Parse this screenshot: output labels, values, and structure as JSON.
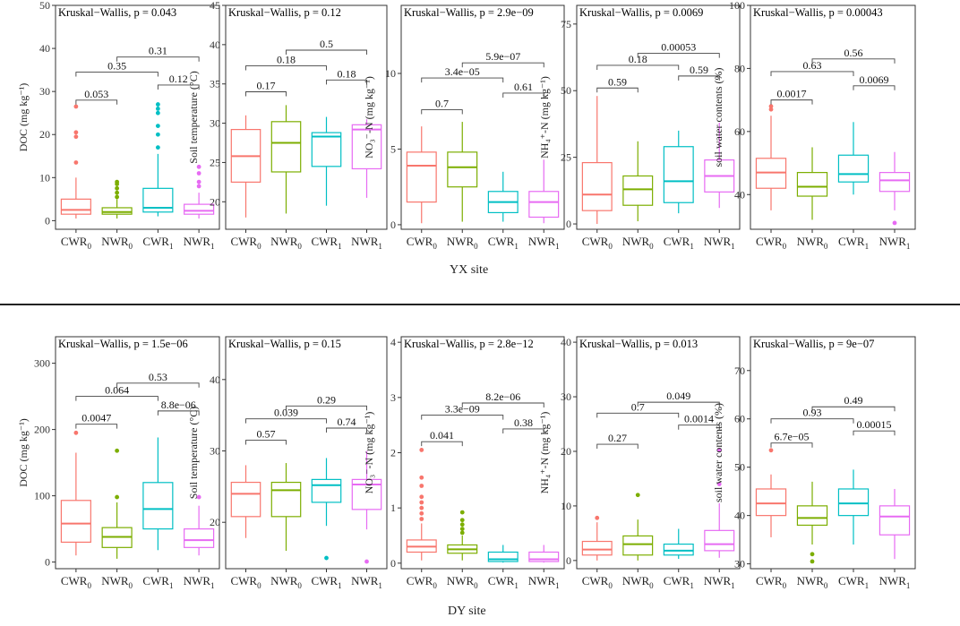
{
  "colors": {
    "CWR0": "#F8766D",
    "NWR0": "#7CAE00",
    "CWR1": "#00BFC4",
    "NWR1": "#E76BF3"
  },
  "sites": [
    {
      "label": "YX  site"
    },
    {
      "label": "DY  site"
    }
  ],
  "chart_data": [
    {
      "type": "box",
      "site": "YX",
      "ylabel": "DOC (mg kg⁻¹)",
      "kw": "Kruskal−Wallis, p = 0.043",
      "ylim": [
        -2,
        50
      ],
      "ticks": [
        0,
        10,
        20,
        30,
        40,
        50
      ],
      "groups": [
        {
          "name": "CWR",
          "sub": "0",
          "key": "CWR0",
          "q1": 1.5,
          "median": 2.5,
          "q3": 5,
          "whislo": 0.5,
          "whishi": 10,
          "outliers": [
            13.5,
            19.5,
            20.5,
            26.5
          ]
        },
        {
          "name": "NWR",
          "sub": "0",
          "key": "NWR0",
          "q1": 1.5,
          "median": 2,
          "q3": 3,
          "whislo": 0.5,
          "whishi": 5,
          "outliers": [
            5.5,
            6.5,
            7.5,
            8.5,
            9
          ]
        },
        {
          "name": "CWR",
          "sub": "1",
          "key": "CWR1",
          "q1": 2,
          "median": 3,
          "q3": 7.5,
          "whislo": 1,
          "whishi": 15.5,
          "outliers": [
            17,
            20,
            22,
            25,
            26,
            27
          ]
        },
        {
          "name": "NWR",
          "sub": "1",
          "key": "NWR1",
          "q1": 1.5,
          "median": 2.3,
          "q3": 3.8,
          "whislo": 0.5,
          "whishi": 6.5,
          "outliers": [
            8,
            9,
            11,
            12.5
          ]
        }
      ],
      "comparisons": [
        {
          "a": 1,
          "b": 2,
          "y": 28,
          "label": "0.053"
        },
        {
          "a": 1,
          "b": 3,
          "y": 34.5,
          "label": "0.35"
        },
        {
          "a": 2,
          "b": 4,
          "y": 38,
          "label": "0.31"
        },
        {
          "a": 3,
          "b": 4,
          "y": 31.5,
          "label": "0.12"
        }
      ]
    },
    {
      "type": "box",
      "site": "YX",
      "ylabel": "Soil temperature (°C)",
      "kw": "Kruskal−Wallis, p = 0.12",
      "ylim": [
        16.5,
        45
      ],
      "ticks": [
        20,
        25,
        30,
        35,
        40,
        45
      ],
      "groups": [
        {
          "name": "CWR",
          "sub": "0",
          "key": "CWR0",
          "q1": 22.5,
          "median": 25.8,
          "q3": 29.2,
          "whislo": 18,
          "whishi": 31,
          "outliers": []
        },
        {
          "name": "NWR",
          "sub": "0",
          "key": "NWR0",
          "q1": 23.8,
          "median": 27.5,
          "q3": 30.2,
          "whislo": 18.5,
          "whishi": 32.3,
          "outliers": []
        },
        {
          "name": "CWR",
          "sub": "1",
          "key": "CWR1",
          "q1": 24.5,
          "median": 28.3,
          "q3": 28.8,
          "whislo": 19.5,
          "whishi": 30.8,
          "outliers": []
        },
        {
          "name": "NWR",
          "sub": "1",
          "key": "NWR1",
          "q1": 24.2,
          "median": 29.2,
          "q3": 29.8,
          "whislo": 20.5,
          "whishi": 30.5,
          "outliers": []
        }
      ],
      "comparisons": [
        {
          "a": 1,
          "b": 2,
          "y": 34,
          "label": "0.17"
        },
        {
          "a": 1,
          "b": 3,
          "y": 37.3,
          "label": "0.18"
        },
        {
          "a": 2,
          "b": 4,
          "y": 39.3,
          "label": "0.5"
        },
        {
          "a": 3,
          "b": 4,
          "y": 35.5,
          "label": "0.18"
        }
      ]
    },
    {
      "type": "box",
      "site": "YX",
      "ylabel": "NO₃⁻-N (mg kg⁻¹)",
      "kw": "Kruskal−Wallis, p = 2.9e−09",
      "ylim": [
        -0.3,
        14.5
      ],
      "ticks": [
        0,
        5,
        10
      ],
      "groups": [
        {
          "name": "CWR",
          "sub": "0",
          "key": "CWR0",
          "q1": 1.5,
          "median": 3.9,
          "q3": 4.8,
          "whislo": 0.1,
          "whishi": 6.5,
          "outliers": []
        },
        {
          "name": "NWR",
          "sub": "0",
          "key": "NWR0",
          "q1": 2.5,
          "median": 3.8,
          "q3": 4.8,
          "whislo": 0.2,
          "whishi": 6.8,
          "outliers": []
        },
        {
          "name": "CWR",
          "sub": "1",
          "key": "CWR1",
          "q1": 0.8,
          "median": 1.5,
          "q3": 2.2,
          "whislo": 0.2,
          "whishi": 3.5,
          "outliers": []
        },
        {
          "name": "NWR",
          "sub": "1",
          "key": "NWR1",
          "q1": 0.5,
          "median": 1.5,
          "q3": 2.2,
          "whislo": 0.1,
          "whishi": 4.3,
          "outliers": []
        }
      ],
      "comparisons": [
        {
          "a": 1,
          "b": 2,
          "y": 7.6,
          "label": "0.7"
        },
        {
          "a": 1,
          "b": 3,
          "y": 9.7,
          "label": "3.4e−05"
        },
        {
          "a": 2,
          "b": 4,
          "y": 10.7,
          "label": "5.9e−07"
        },
        {
          "a": 3,
          "b": 4,
          "y": 8.7,
          "label": "0.61"
        }
      ]
    },
    {
      "type": "box",
      "site": "YX",
      "ylabel": "NH₄⁺-N (mg kg⁻¹)",
      "kw": "Kruskal−Wallis, p = 0.0069",
      "ylim": [
        -2,
        82
      ],
      "ticks": [
        0,
        25,
        50,
        75
      ],
      "groups": [
        {
          "name": "CWR",
          "sub": "0",
          "key": "CWR0",
          "q1": 5,
          "median": 11,
          "q3": 23,
          "whislo": 0,
          "whishi": 48,
          "outliers": []
        },
        {
          "name": "NWR",
          "sub": "0",
          "key": "NWR0",
          "q1": 7,
          "median": 13,
          "q3": 18,
          "whislo": 1,
          "whishi": 31,
          "outliers": []
        },
        {
          "name": "CWR",
          "sub": "1",
          "key": "CWR1",
          "q1": 8,
          "median": 16,
          "q3": 29,
          "whislo": 4,
          "whishi": 35,
          "outliers": []
        },
        {
          "name": "NWR",
          "sub": "1",
          "key": "NWR1",
          "q1": 12,
          "median": 18,
          "q3": 24,
          "whislo": 6,
          "whishi": 38,
          "outliers": []
        }
      ],
      "comparisons": [
        {
          "a": 1,
          "b": 2,
          "y": 51,
          "label": "0.59"
        },
        {
          "a": 1,
          "b": 3,
          "y": 59.5,
          "label": "0.18"
        },
        {
          "a": 2,
          "b": 4,
          "y": 64,
          "label": "0.00053"
        },
        {
          "a": 3,
          "b": 4,
          "y": 55.5,
          "label": "0.59"
        }
      ]
    },
    {
      "type": "box",
      "site": "YX",
      "ylabel": "soil water contents (%)",
      "kw": "Kruskal−Wallis, p = 0.00043",
      "ylim": [
        29,
        100
      ],
      "ticks": [
        40,
        60,
        80,
        100
      ],
      "groups": [
        {
          "name": "CWR",
          "sub": "0",
          "key": "CWR0",
          "q1": 42,
          "median": 47,
          "q3": 51.5,
          "whislo": 35,
          "whishi": 65,
          "outliers": [
            67,
            68
          ]
        },
        {
          "name": "NWR",
          "sub": "0",
          "key": "NWR0",
          "q1": 39.5,
          "median": 42.5,
          "q3": 47,
          "whislo": 32,
          "whishi": 55,
          "outliers": []
        },
        {
          "name": "CWR",
          "sub": "1",
          "key": "CWR1",
          "q1": 44,
          "median": 46.5,
          "q3": 52.5,
          "whislo": 40,
          "whishi": 63,
          "outliers": []
        },
        {
          "name": "NWR",
          "sub": "1",
          "key": "NWR1",
          "q1": 41,
          "median": 44.5,
          "q3": 47,
          "whislo": 35,
          "whishi": 53.5,
          "outliers": [
            31
          ]
        }
      ],
      "comparisons": [
        {
          "a": 1,
          "b": 2,
          "y": 70,
          "label": "0.0017"
        },
        {
          "a": 1,
          "b": 3,
          "y": 79,
          "label": "0.63"
        },
        {
          "a": 2,
          "b": 4,
          "y": 83,
          "label": "0.56"
        },
        {
          "a": 3,
          "b": 4,
          "y": 74.5,
          "label": "0.0069"
        }
      ]
    },
    {
      "type": "box",
      "site": "DY",
      "ylabel": "DOC (mg kg⁻¹)",
      "kw": "Kruskal−Wallis, p = 1.5e−06",
      "ylim": [
        -10,
        340
      ],
      "ticks": [
        0,
        100,
        200,
        300
      ],
      "groups": [
        {
          "name": "CWR",
          "sub": "0",
          "key": "CWR0",
          "q1": 30,
          "median": 58,
          "q3": 93,
          "whislo": 10,
          "whishi": 165,
          "outliers": [
            195
          ]
        },
        {
          "name": "NWR",
          "sub": "0",
          "key": "NWR0",
          "q1": 22,
          "median": 38,
          "q3": 52,
          "whislo": 5,
          "whishi": 90,
          "outliers": [
            98,
            168
          ]
        },
        {
          "name": "CWR",
          "sub": "1",
          "key": "CWR1",
          "q1": 50,
          "median": 80,
          "q3": 120,
          "whislo": 18,
          "whishi": 188,
          "outliers": []
        },
        {
          "name": "NWR",
          "sub": "1",
          "key": "NWR1",
          "q1": 22,
          "median": 33,
          "q3": 50,
          "whislo": 10,
          "whishi": 85,
          "outliers": [
            98
          ]
        }
      ],
      "comparisons": [
        {
          "a": 1,
          "b": 2,
          "y": 208,
          "label": "0.0047"
        },
        {
          "a": 1,
          "b": 3,
          "y": 250,
          "label": "0.064"
        },
        {
          "a": 2,
          "b": 4,
          "y": 270,
          "label": "0.53"
        },
        {
          "a": 3,
          "b": 4,
          "y": 228,
          "label": "8.8e−06"
        }
      ]
    },
    {
      "type": "box",
      "site": "DY",
      "ylabel": "Soil temperature (°C)",
      "kw": "Kruskal−Wallis, p = 0.15",
      "ylim": [
        13.5,
        46
      ],
      "ticks": [
        20,
        30,
        40
      ],
      "groups": [
        {
          "name": "CWR",
          "sub": "0",
          "key": "CWR0",
          "q1": 20.8,
          "median": 24,
          "q3": 25.6,
          "whislo": 17.8,
          "whishi": 28,
          "outliers": []
        },
        {
          "name": "NWR",
          "sub": "0",
          "key": "NWR0",
          "q1": 20.8,
          "median": 24.5,
          "q3": 25.6,
          "whislo": 16,
          "whishi": 28.3,
          "outliers": []
        },
        {
          "name": "CWR",
          "sub": "1",
          "key": "CWR1",
          "q1": 22.8,
          "median": 25.2,
          "q3": 26,
          "whislo": 19.5,
          "whishi": 29,
          "outliers": [
            15
          ]
        },
        {
          "name": "NWR",
          "sub": "1",
          "key": "NWR1",
          "q1": 21.8,
          "median": 25.3,
          "q3": 26,
          "whislo": 19,
          "whishi": 30,
          "outliers": [
            14.5
          ]
        }
      ],
      "comparisons": [
        {
          "a": 1,
          "b": 2,
          "y": 31.5,
          "label": "0.57"
        },
        {
          "a": 1,
          "b": 3,
          "y": 34.5,
          "label": "0.039"
        },
        {
          "a": 2,
          "b": 4,
          "y": 36.3,
          "label": "0.29"
        },
        {
          "a": 3,
          "b": 4,
          "y": 33.2,
          "label": "0.74"
        }
      ]
    },
    {
      "type": "box",
      "site": "DY",
      "ylabel": "NO₃⁻-N (mg kg⁻¹)",
      "kw": "Kruskal−Wallis, p = 2.8e−12",
      "ylim": [
        -0.1,
        4.1
      ],
      "ticks": [
        0,
        1,
        2,
        3,
        4
      ],
      "groups": [
        {
          "name": "CWR",
          "sub": "0",
          "key": "CWR0",
          "q1": 0.2,
          "median": 0.3,
          "q3": 0.42,
          "whislo": 0.05,
          "whishi": 0.72,
          "outliers": [
            0.8,
            0.9,
            1.0,
            1.1,
            1.2,
            1.4,
            1.55,
            2.05
          ]
        },
        {
          "name": "NWR",
          "sub": "0",
          "key": "NWR0",
          "q1": 0.18,
          "median": 0.25,
          "q3": 0.33,
          "whislo": 0.05,
          "whishi": 0.5,
          "outliers": [
            0.55,
            0.62,
            0.7,
            0.78,
            0.92
          ]
        },
        {
          "name": "CWR",
          "sub": "1",
          "key": "CWR1",
          "q1": 0.03,
          "median": 0.07,
          "q3": 0.2,
          "whislo": 0.01,
          "whishi": 0.33,
          "outliers": []
        },
        {
          "name": "NWR",
          "sub": "1",
          "key": "NWR1",
          "q1": 0.03,
          "median": 0.07,
          "q3": 0.2,
          "whislo": 0.01,
          "whishi": 0.33,
          "outliers": []
        }
      ],
      "comparisons": [
        {
          "a": 1,
          "b": 2,
          "y": 2.2,
          "label": "0.041"
        },
        {
          "a": 1,
          "b": 3,
          "y": 2.68,
          "label": "3.3e−09"
        },
        {
          "a": 2,
          "b": 4,
          "y": 2.9,
          "label": "8.2e−06"
        },
        {
          "a": 3,
          "b": 4,
          "y": 2.43,
          "label": "0.38"
        }
      ]
    },
    {
      "type": "box",
      "site": "DY",
      "ylabel": "NH₄⁺-N (mg kg⁻¹)",
      "kw": "Kruskal−Wallis, p = 0.013",
      "ylim": [
        -1.5,
        41
      ],
      "ticks": [
        0,
        10,
        20,
        30,
        40
      ],
      "groups": [
        {
          "name": "CWR",
          "sub": "0",
          "key": "CWR0",
          "q1": 1,
          "median": 2,
          "q3": 3.5,
          "whislo": 0,
          "whishi": 7,
          "outliers": [
            7.8
          ]
        },
        {
          "name": "NWR",
          "sub": "0",
          "key": "NWR0",
          "q1": 1,
          "median": 3,
          "q3": 4.5,
          "whislo": 0,
          "whishi": 7.5,
          "outliers": [
            12
          ]
        },
        {
          "name": "CWR",
          "sub": "1",
          "key": "CWR1",
          "q1": 1,
          "median": 1.8,
          "q3": 3,
          "whislo": 0.3,
          "whishi": 5.8,
          "outliers": []
        },
        {
          "name": "NWR",
          "sub": "1",
          "key": "NWR1",
          "q1": 1.8,
          "median": 3,
          "q3": 5.5,
          "whislo": 0.5,
          "whishi": 10.5,
          "outliers": [
            14,
            20.2
          ]
        }
      ],
      "comparisons": [
        {
          "a": 1,
          "b": 2,
          "y": 21.3,
          "label": "0.27"
        },
        {
          "a": 1,
          "b": 3,
          "y": 27,
          "label": "0.7"
        },
        {
          "a": 2,
          "b": 4,
          "y": 29,
          "label": "0.049"
        },
        {
          "a": 3,
          "b": 4,
          "y": 24.8,
          "label": "0.0014"
        }
      ]
    },
    {
      "type": "box",
      "site": "DY",
      "ylabel": "soil water contents (%)",
      "kw": "Kruskal−Wallis, p = 9e−07",
      "ylim": [
        29,
        77
      ],
      "ticks": [
        30,
        40,
        50,
        60,
        70
      ],
      "groups": [
        {
          "name": "CWR",
          "sub": "0",
          "key": "CWR0",
          "q1": 40,
          "median": 42.5,
          "q3": 45.5,
          "whislo": 35.5,
          "whishi": 48.5,
          "outliers": [
            53.5
          ]
        },
        {
          "name": "NWR",
          "sub": "0",
          "key": "NWR0",
          "q1": 38,
          "median": 39.5,
          "q3": 42,
          "whislo": 34,
          "whishi": 47,
          "outliers": [
            30.5,
            32
          ]
        },
        {
          "name": "CWR",
          "sub": "1",
          "key": "CWR1",
          "q1": 40,
          "median": 42.5,
          "q3": 45.5,
          "whislo": 34,
          "whishi": 49.5,
          "outliers": []
        },
        {
          "name": "NWR",
          "sub": "1",
          "key": "NWR1",
          "q1": 36,
          "median": 39.8,
          "q3": 42,
          "whislo": 31,
          "whishi": 45.5,
          "outliers": []
        }
      ],
      "comparisons": [
        {
          "a": 1,
          "b": 2,
          "y": 55,
          "label": "6.7e−05"
        },
        {
          "a": 1,
          "b": 3,
          "y": 60,
          "label": "0.93"
        },
        {
          "a": 2,
          "b": 4,
          "y": 62.5,
          "label": "0.49"
        },
        {
          "a": 3,
          "b": 4,
          "y": 57.5,
          "label": "0.00015"
        }
      ]
    }
  ]
}
